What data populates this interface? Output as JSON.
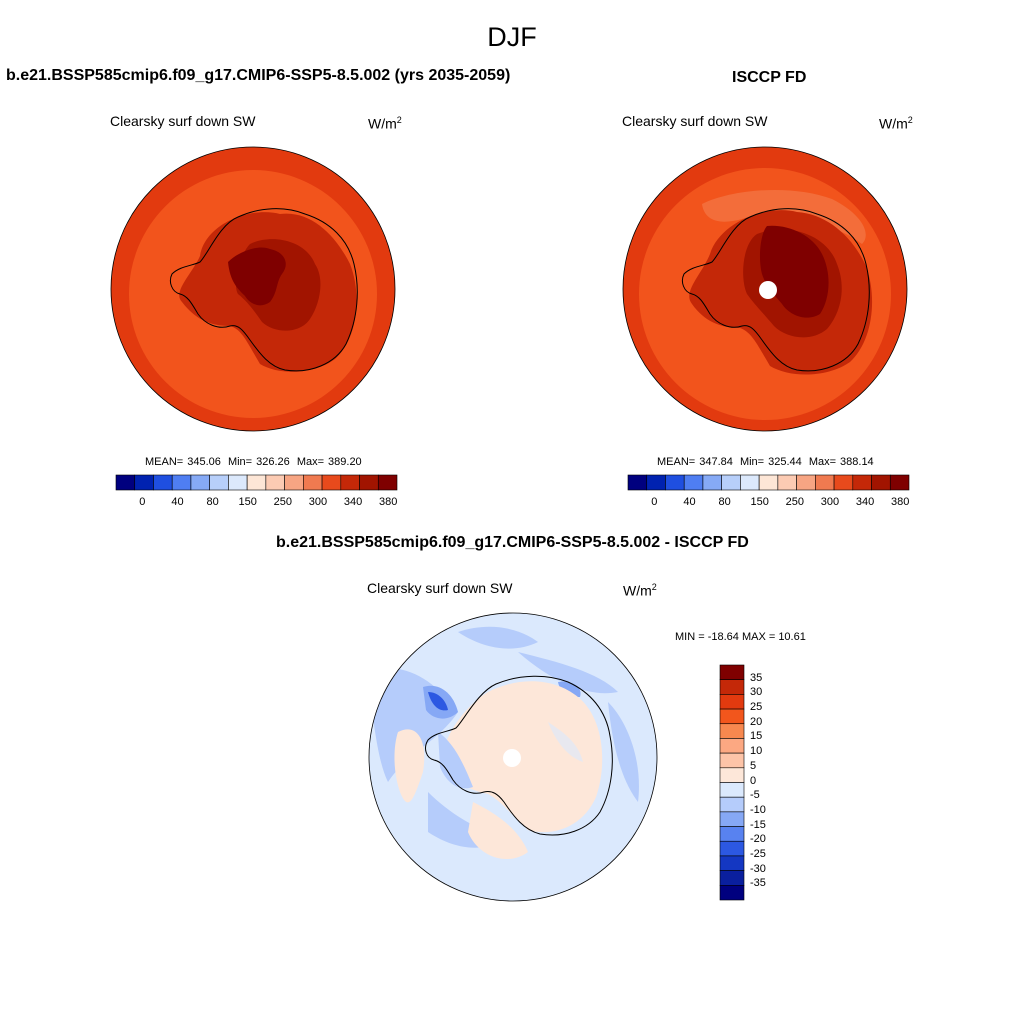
{
  "main_title": "DJF",
  "panel_left": {
    "case": "b.e21.BSSP585cmip6.f09_g17.CMIP6-SSP5-8.5.002 (yrs 2035-2059)",
    "variable": "Clearsky surf down SW",
    "units_base": "W/m",
    "units_exp": "2",
    "stats": {
      "mean_label": "MEAN=",
      "mean": "345.06",
      "min_label": "Min=",
      "min": "326.26",
      "max_label": "Max=",
      "max": "389.20"
    }
  },
  "panel_right": {
    "case": "ISCCP FD",
    "variable": "Clearsky surf down SW",
    "units_base": "W/m",
    "units_exp": "2",
    "stats": {
      "mean_label": "MEAN=",
      "mean": "347.84",
      "min_label": "Min=",
      "min": "325.44",
      "max_label": "Max=",
      "max": "388.14"
    }
  },
  "panel_diff": {
    "case": "b.e21.BSSP585cmip6.f09_g17.CMIP6-SSP5-8.5.002 - ISCCP FD",
    "variable": "Clearsky surf down SW",
    "units_base": "W/m",
    "units_exp": "2",
    "stats": "MIN = -18.64 MAX =  10.61"
  },
  "colorbar_abs": {
    "colors": [
      "#00007f",
      "#0022b0",
      "#1f4fe0",
      "#4f7ef2",
      "#86aaf6",
      "#b7cffa",
      "#dce9fc",
      "#fde6d6",
      "#fccbb3",
      "#f7a583",
      "#f07a50",
      "#e84a1c",
      "#c42808",
      "#a11400",
      "#7f0000"
    ],
    "tick_labels": [
      "0",
      "40",
      "80",
      "150",
      "250",
      "300",
      "340",
      "380"
    ]
  },
  "colorbar_diff": {
    "colors": [
      "#7f0000",
      "#c42808",
      "#e23a0f",
      "#f2561c",
      "#f7884f",
      "#fca882",
      "#fdc4a8",
      "#fde7d9",
      "#dbe9fd",
      "#b5ccfb",
      "#86a8f5",
      "#5882f0",
      "#2c58e2",
      "#1437c2",
      "#0a1f9e",
      "#00007f"
    ],
    "tick_labels": [
      "35",
      "30",
      "25",
      "20",
      "15",
      "10",
      "5",
      "0",
      "-5",
      "-10",
      "-15",
      "-20",
      "-25",
      "-30",
      "-35"
    ]
  }
}
